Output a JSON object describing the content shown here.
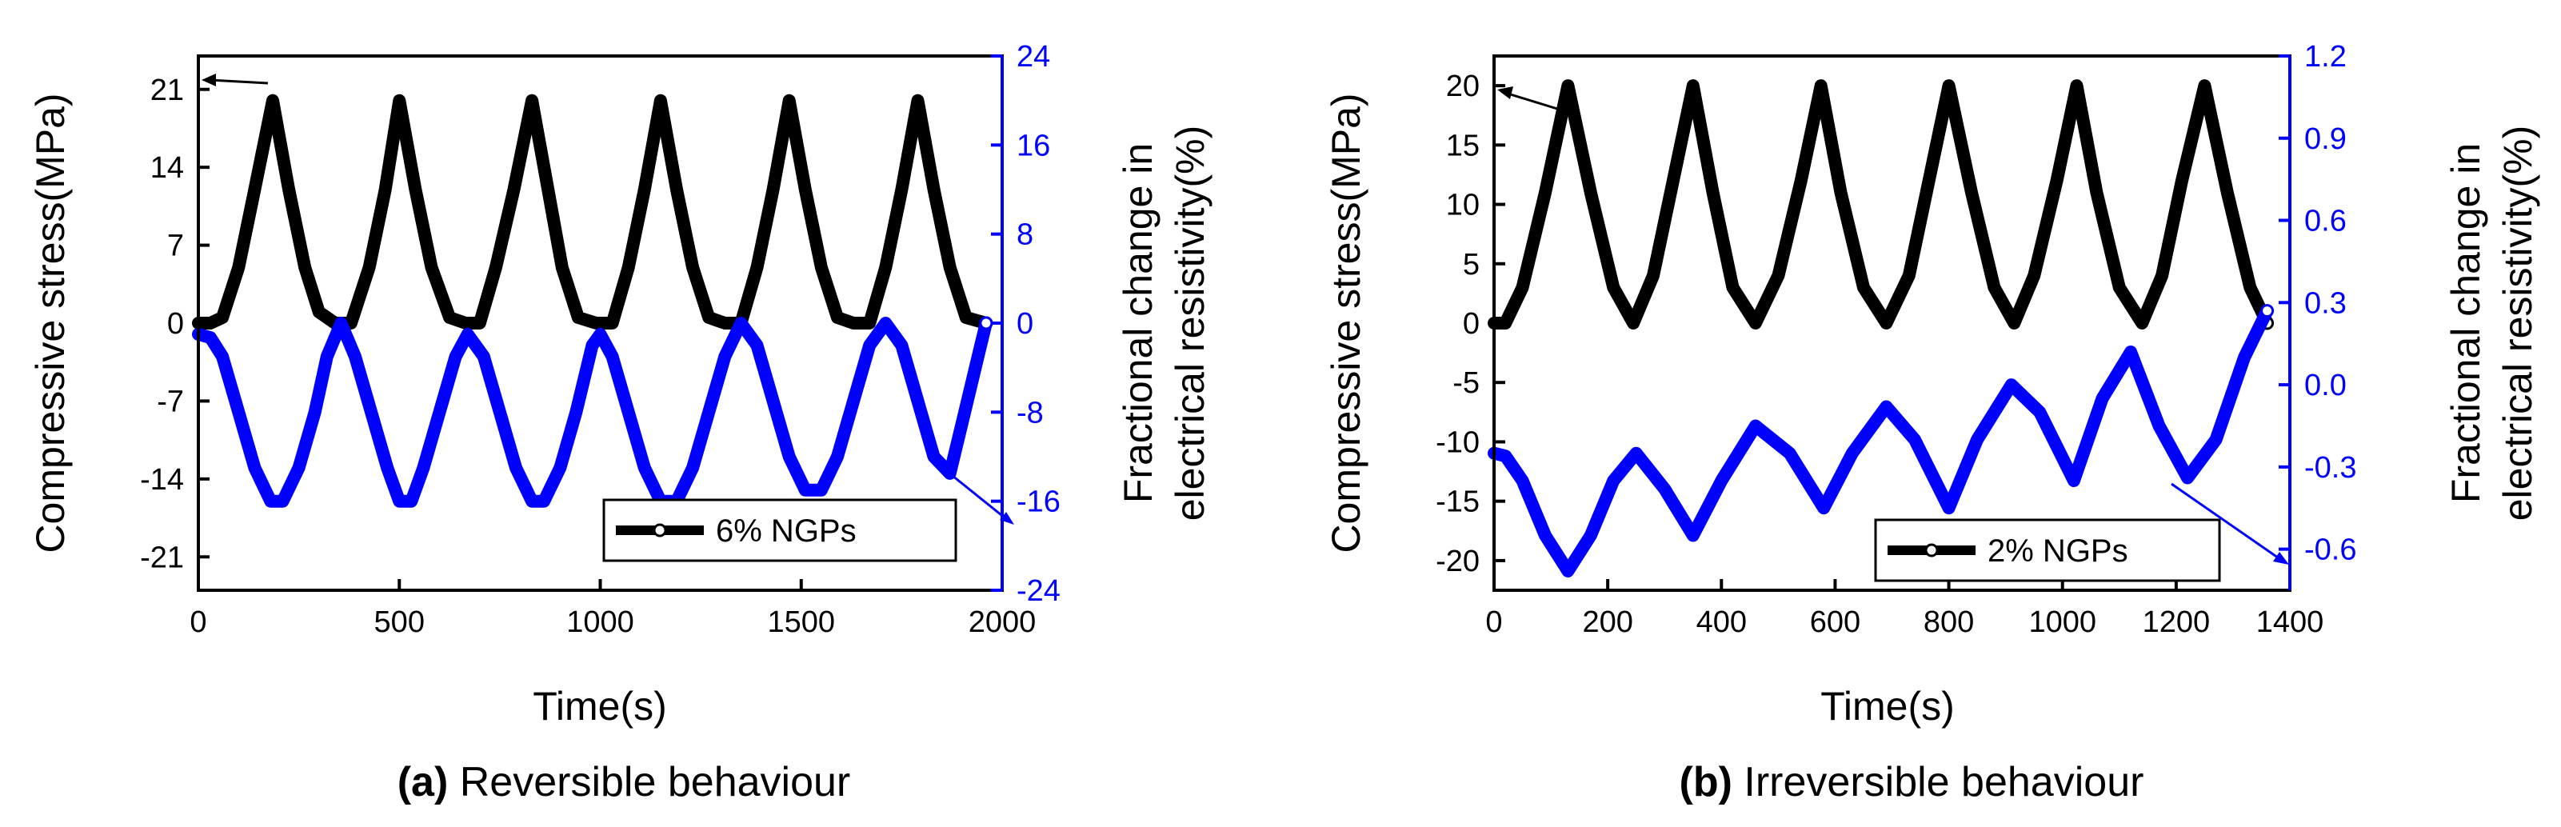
{
  "chart_data": [
    {
      "type": "line",
      "id": "a",
      "caption_letter": "(a)",
      "caption_text": "Reversible behaviour",
      "xlabel": "Time(s)",
      "ylabel_left": "Compressive stress(MPa)",
      "ylabel_right_line1": "Fractional change in",
      "ylabel_right_line2": "electrical resistivity(%)",
      "xlim": [
        0,
        2000
      ],
      "ylim_left": [
        -24,
        24
      ],
      "ylim_right": [
        -24,
        24
      ],
      "x_ticks": [
        0,
        500,
        1000,
        1500,
        2000
      ],
      "y_left_ticks": [
        -21,
        -14,
        -7,
        0,
        7,
        14,
        21
      ],
      "y_right_ticks": [
        -24,
        -16,
        -8,
        0,
        8,
        16,
        24
      ],
      "legend_label": "6% NGPs",
      "legend_position": "bottom-right",
      "colors": {
        "stress": "#000000",
        "resistivity": "#0000ff",
        "axis_right": "#0000ff"
      },
      "series": [
        {
          "name": "Compressive stress",
          "axis": "left",
          "x": [
            0,
            30,
            60,
            100,
            140,
            185,
            225,
            265,
            300,
            340,
            380,
            425,
            465,
            500,
            540,
            580,
            625,
            665,
            700,
            740,
            785,
            830,
            870,
            905,
            945,
            990,
            1030,
            1070,
            1110,
            1150,
            1190,
            1230,
            1270,
            1310,
            1350,
            1390,
            1430,
            1470,
            1510,
            1550,
            1590,
            1630,
            1670,
            1710,
            1750,
            1790,
            1830,
            1870,
            1910,
            1960
          ],
          "values": [
            0,
            0,
            0.5,
            5,
            12,
            20,
            12,
            5,
            1,
            0,
            0,
            5,
            12,
            20,
            12,
            5,
            0.5,
            0,
            0,
            5,
            12,
            20,
            12,
            5,
            0.5,
            0,
            0,
            5,
            12,
            20,
            12,
            5,
            0.5,
            0,
            0,
            5,
            12,
            20,
            12,
            5,
            0.5,
            0,
            0,
            5,
            12,
            20,
            12,
            5,
            0.5,
            0
          ]
        },
        {
          "name": "Fractional change in electrical resistivity",
          "axis": "right",
          "x": [
            0,
            30,
            60,
            100,
            140,
            180,
            210,
            250,
            290,
            320,
            355,
            390,
            430,
            470,
            500,
            530,
            560,
            600,
            640,
            670,
            710,
            750,
            790,
            830,
            860,
            900,
            940,
            980,
            1000,
            1030,
            1070,
            1110,
            1150,
            1190,
            1230,
            1270,
            1310,
            1350,
            1390,
            1430,
            1470,
            1510,
            1550,
            1590,
            1630,
            1670,
            1710,
            1750,
            1790,
            1830,
            1870,
            1900,
            1940,
            1960
          ],
          "values": [
            -1,
            -1.3,
            -3,
            -8,
            -13,
            -16,
            -16,
            -13,
            -8,
            -3,
            0,
            -3,
            -8,
            -13,
            -16,
            -16,
            -13,
            -8,
            -3,
            -1,
            -3,
            -8,
            -13,
            -16,
            -16,
            -13,
            -8,
            -2,
            -1,
            -3,
            -8,
            -13,
            -16,
            -16,
            -13,
            -8,
            -3,
            0,
            -2,
            -7,
            -12,
            -15,
            -15,
            -12,
            -7,
            -2,
            0,
            -2,
            -7,
            -12,
            -13.5,
            -9,
            -3,
            0
          ]
        }
      ]
    },
    {
      "type": "line",
      "id": "b",
      "caption_letter": "(b)",
      "caption_text": "Irreversible behaviour",
      "xlabel": "Time(s)",
      "ylabel_left": "Compressive stress(MPa)",
      "ylabel_right_line1": "Fractional change in",
      "ylabel_right_line2": "electrical resistivity(%)",
      "xlim": [
        0,
        1400
      ],
      "ylim_left": [
        -22.5,
        22.5
      ],
      "ylim_right": [
        -0.75,
        1.2
      ],
      "x_ticks": [
        0,
        200,
        400,
        600,
        800,
        1000,
        1200,
        1400
      ],
      "y_left_ticks": [
        -20,
        -15,
        -10,
        -5,
        0,
        5,
        10,
        15,
        20
      ],
      "y_right_ticks": [
        -0.6,
        -0.3,
        0.0,
        0.3,
        0.6,
        0.9,
        1.2
      ],
      "y_right_tick_labels": [
        "-0.6",
        "-0.3",
        "0.0",
        "0.3",
        "0.6",
        "0.9",
        "1.2"
      ],
      "legend_label": "2% NGPs",
      "legend_position": "bottom-right",
      "colors": {
        "stress": "#000000",
        "resistivity": "#0000ff",
        "axis_right": "#0000ff"
      },
      "series": [
        {
          "name": "Compressive stress",
          "axis": "left",
          "x": [
            0,
            20,
            50,
            90,
            130,
            170,
            210,
            245,
            280,
            315,
            350,
            385,
            420,
            460,
            500,
            540,
            575,
            610,
            650,
            690,
            730,
            765,
            800,
            840,
            880,
            915,
            950,
            990,
            1025,
            1060,
            1100,
            1140,
            1175,
            1210,
            1250,
            1290,
            1330,
            1360
          ],
          "values": [
            0,
            0,
            3,
            11,
            20,
            11,
            3,
            0,
            4,
            12,
            20,
            11,
            3,
            0,
            4,
            12,
            20,
            11,
            3,
            0,
            4,
            12,
            20,
            11,
            3,
            0,
            4,
            12,
            20,
            11,
            3,
            0,
            4,
            12,
            20,
            11,
            3,
            0
          ]
        },
        {
          "name": "Fractional change in electrical resistivity",
          "axis": "right",
          "x": [
            0,
            20,
            50,
            90,
            130,
            170,
            210,
            250,
            300,
            350,
            400,
            460,
            520,
            580,
            630,
            690,
            740,
            800,
            850,
            910,
            960,
            1020,
            1070,
            1120,
            1170,
            1220,
            1270,
            1320,
            1360
          ],
          "values": [
            -0.25,
            -0.26,
            -0.35,
            -0.55,
            -0.68,
            -0.55,
            -0.35,
            -0.25,
            -0.38,
            -0.55,
            -0.35,
            -0.15,
            -0.25,
            -0.45,
            -0.25,
            -0.08,
            -0.2,
            -0.45,
            -0.2,
            0.0,
            -0.1,
            -0.35,
            -0.05,
            0.12,
            -0.15,
            -0.34,
            -0.2,
            0.1,
            0.27
          ]
        }
      ]
    }
  ]
}
